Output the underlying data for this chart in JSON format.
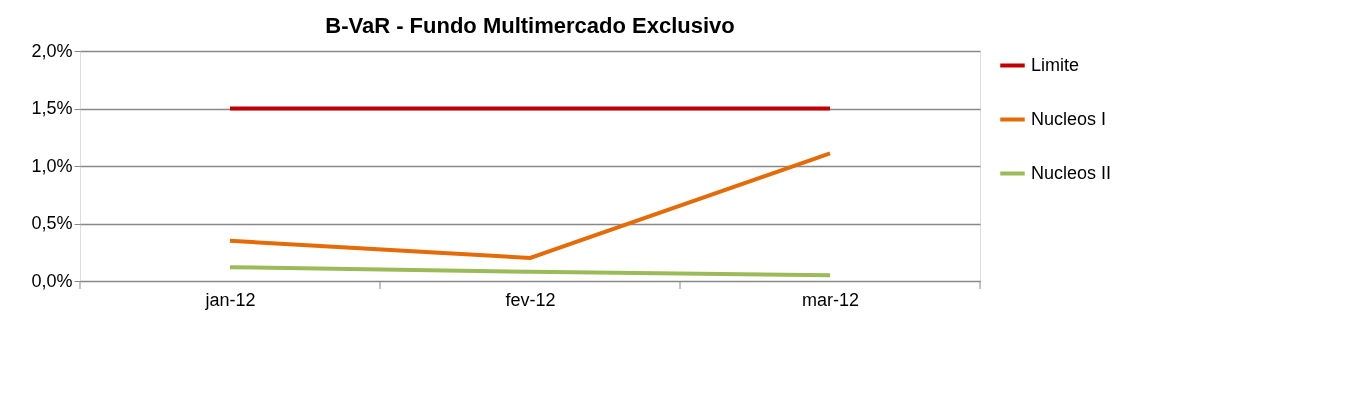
{
  "chart_data": {
    "type": "line",
    "title": "B-VaR - Fundo Multimercado Exclusivo",
    "categories": [
      "jan-12",
      "fev-12",
      "mar-12"
    ],
    "series": [
      {
        "name": "Limite",
        "color": "#c00000",
        "values": [
          1.5,
          1.5,
          1.5
        ]
      },
      {
        "name": "Nucleos I",
        "color": "#e36c09",
        "values": [
          0.35,
          0.2,
          1.11
        ]
      },
      {
        "name": "Nucleos II",
        "color": "#9bbb59",
        "values": [
          0.12,
          0.08,
          0.05
        ]
      }
    ],
    "ylim": [
      0,
      2.0
    ],
    "yticks": [
      {
        "value": 0,
        "label": "0,0%"
      },
      {
        "value": 0.5,
        "label": "0,5%"
      },
      {
        "value": 1.0,
        "label": "1,0%"
      },
      {
        "value": 1.5,
        "label": "1,5%"
      },
      {
        "value": 2.0,
        "label": "2,0%"
      }
    ],
    "grid": "y",
    "legend": "right",
    "marker": "none",
    "line_style": "solid"
  }
}
